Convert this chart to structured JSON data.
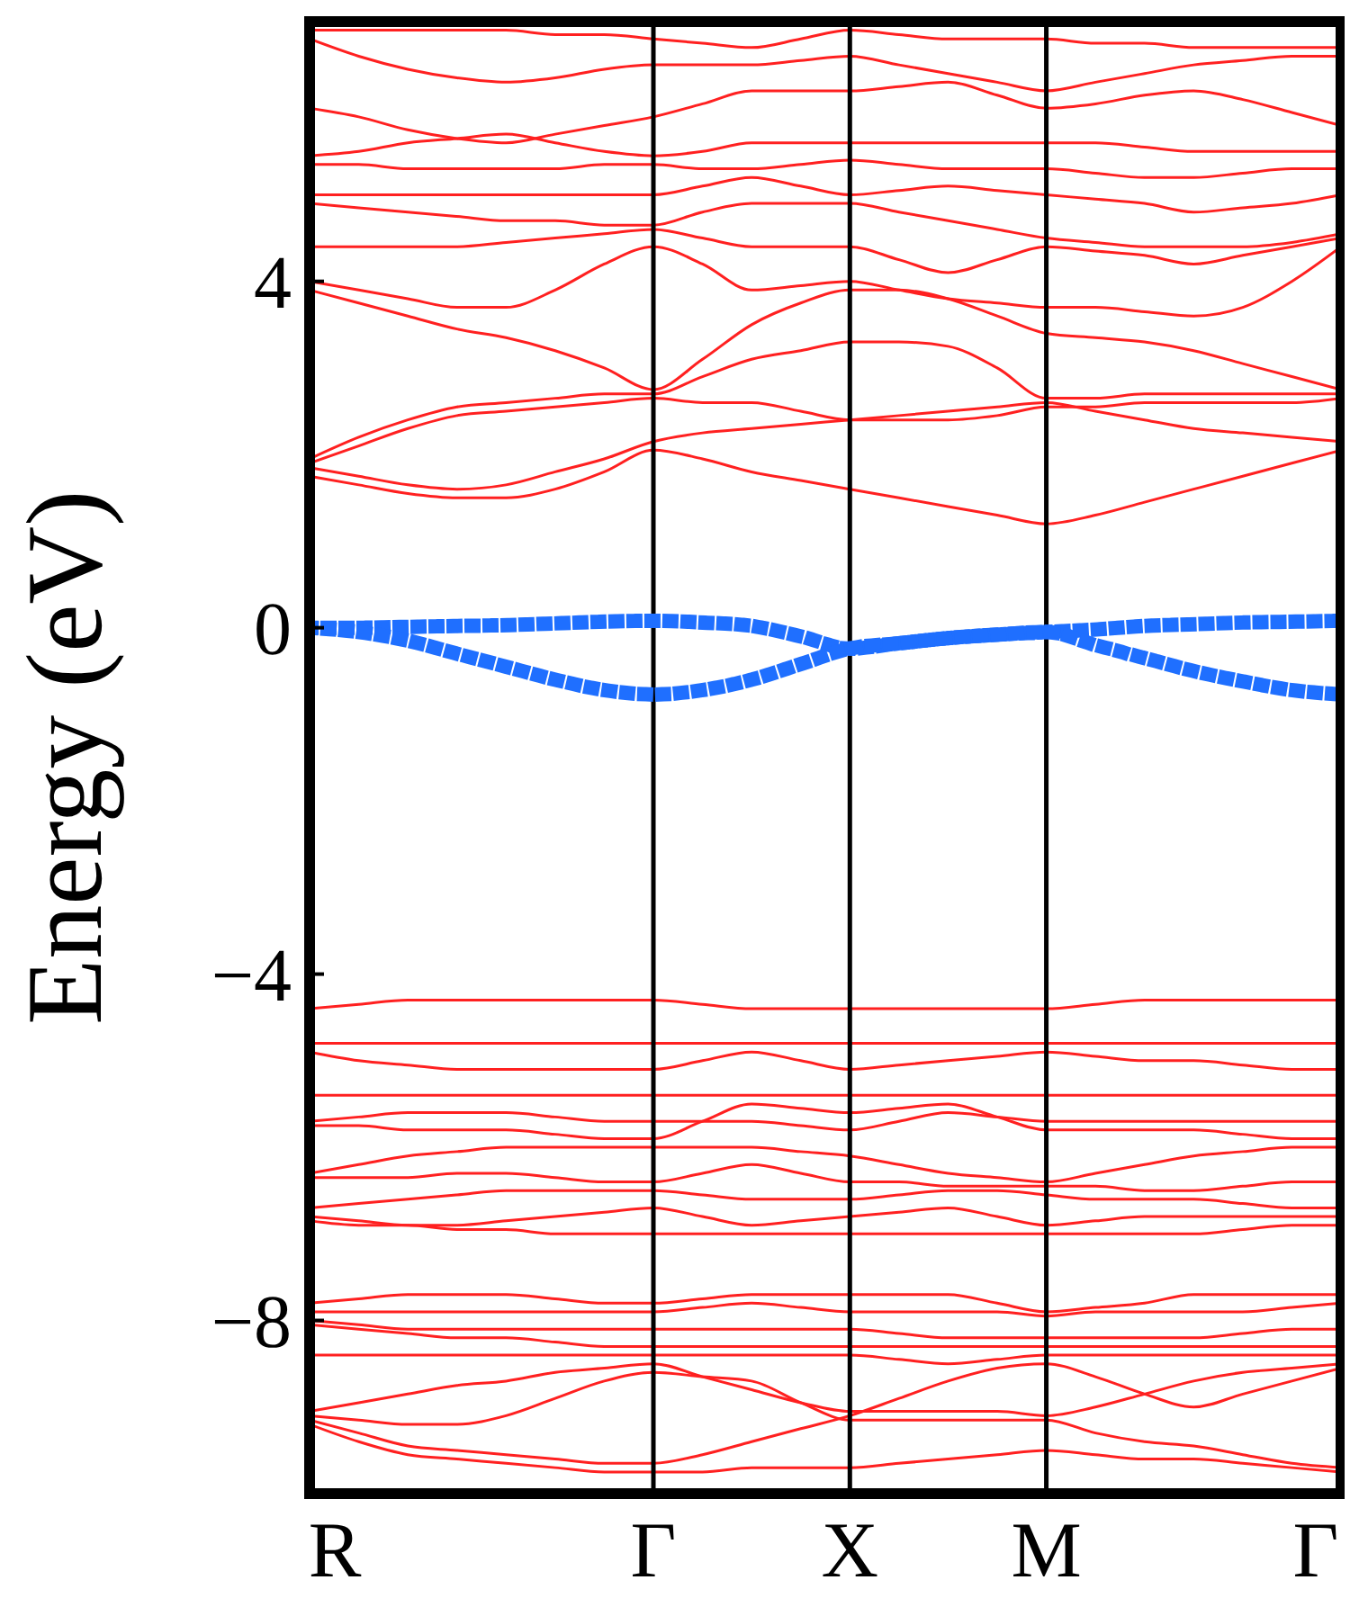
{
  "chart_data": {
    "type": "line",
    "ylabel": "Energy (eV)",
    "categories": [
      "R",
      null,
      null,
      null,
      null,
      null,
      null,
      "Γ",
      null,
      null,
      null,
      "X",
      null,
      null,
      null,
      "M",
      null,
      null,
      null,
      null,
      null,
      "Γ"
    ],
    "ylim": [
      -10,
      7
    ],
    "yticks": [
      {
        "value": -8,
        "label": "−8"
      },
      {
        "value": -4,
        "label": "−4"
      },
      0,
      4
    ],
    "grid": "x",
    "line_style": "solid",
    "series": [
      {
        "color": "#ff2020",
        "values": [
          1.75,
          1.65,
          1.55,
          1.5,
          1.5,
          1.6,
          1.8,
          2.05,
          1.95,
          1.8,
          1.7,
          1.6,
          1.5,
          1.4,
          1.3,
          1.2,
          1.3,
          1.45,
          1.6,
          1.75,
          1.9,
          2.05
        ]
      },
      {
        "color": "#ff2020",
        "values": [
          1.85,
          1.75,
          1.65,
          1.6,
          1.65,
          1.8,
          1.95,
          2.15,
          2.25,
          2.3,
          2.35,
          2.4,
          2.45,
          2.5,
          2.55,
          2.6,
          2.5,
          2.4,
          2.3,
          2.25,
          2.2,
          2.15
        ]
      },
      {
        "color": "#ff2020",
        "values": [
          1.9,
          2.1,
          2.3,
          2.45,
          2.5,
          2.55,
          2.6,
          2.65,
          2.6,
          2.6,
          2.5,
          2.4,
          2.4,
          2.4,
          2.45,
          2.55,
          2.55,
          2.6,
          2.6,
          2.6,
          2.6,
          2.65
        ]
      },
      {
        "color": "#ff2020",
        "values": [
          1.95,
          2.2,
          2.4,
          2.55,
          2.6,
          2.65,
          2.7,
          2.7,
          2.9,
          3.1,
          3.2,
          3.3,
          3.3,
          3.25,
          3.0,
          2.65,
          2.65,
          2.7,
          2.7,
          2.7,
          2.7,
          2.7
        ]
      },
      {
        "color": "#ff2020",
        "values": [
          3.9,
          3.75,
          3.6,
          3.45,
          3.35,
          3.2,
          3.0,
          2.75,
          3.1,
          3.5,
          3.75,
          3.9,
          3.9,
          3.8,
          3.6,
          3.4,
          3.35,
          3.3,
          3.2,
          3.05,
          2.9,
          2.75
        ]
      },
      {
        "color": "#ff2020",
        "values": [
          4.0,
          3.9,
          3.8,
          3.7,
          3.7,
          3.9,
          4.2,
          4.4,
          4.2,
          3.9,
          3.95,
          4.0,
          3.9,
          3.8,
          3.75,
          3.7,
          3.7,
          3.65,
          3.6,
          3.7,
          4.0,
          4.4
        ]
      },
      {
        "color": "#ff2020",
        "values": [
          4.4,
          4.4,
          4.4,
          4.4,
          4.45,
          4.5,
          4.55,
          4.6,
          4.5,
          4.4,
          4.4,
          4.4,
          4.25,
          4.1,
          4.25,
          4.4,
          4.35,
          4.3,
          4.2,
          4.3,
          4.4,
          4.5
        ]
      },
      {
        "color": "#ff2020",
        "values": [
          4.9,
          4.85,
          4.8,
          4.75,
          4.7,
          4.7,
          4.65,
          4.65,
          4.8,
          4.9,
          4.9,
          4.9,
          4.8,
          4.7,
          4.6,
          4.5,
          4.45,
          4.4,
          4.4,
          4.4,
          4.45,
          4.55
        ]
      },
      {
        "color": "#ff2020",
        "values": [
          5.0,
          5.0,
          5.0,
          5.0,
          5.0,
          5.0,
          5.0,
          5.0,
          5.1,
          5.2,
          5.1,
          5.0,
          5.05,
          5.1,
          5.05,
          5.0,
          4.95,
          4.9,
          4.8,
          4.85,
          4.9,
          5.0
        ]
      },
      {
        "color": "#ff2020",
        "values": [
          5.35,
          5.35,
          5.3,
          5.3,
          5.3,
          5.3,
          5.35,
          5.35,
          5.3,
          5.3,
          5.35,
          5.4,
          5.35,
          5.3,
          5.3,
          5.3,
          5.25,
          5.2,
          5.2,
          5.25,
          5.3,
          5.3
        ]
      },
      {
        "color": "#ff2020",
        "values": [
          5.45,
          5.5,
          5.6,
          5.65,
          5.7,
          5.6,
          5.5,
          5.45,
          5.5,
          5.6,
          5.6,
          5.6,
          5.6,
          5.6,
          5.6,
          5.6,
          5.6,
          5.55,
          5.5,
          5.5,
          5.5,
          5.5
        ]
      },
      {
        "color": "#ff2020",
        "values": [
          6.0,
          5.9,
          5.75,
          5.65,
          5.6,
          5.7,
          5.8,
          5.9,
          6.05,
          6.2,
          6.2,
          6.2,
          6.25,
          6.3,
          6.15,
          6.0,
          6.05,
          6.15,
          6.2,
          6.1,
          5.95,
          5.8
        ]
      },
      {
        "color": "#ff2020",
        "values": [
          6.8,
          6.6,
          6.45,
          6.35,
          6.3,
          6.35,
          6.45,
          6.5,
          6.5,
          6.5,
          6.55,
          6.6,
          6.5,
          6.4,
          6.3,
          6.2,
          6.3,
          6.4,
          6.5,
          6.55,
          6.6,
          6.6
        ]
      },
      {
        "color": "#ff2020",
        "values": [
          6.9,
          6.9,
          6.9,
          6.9,
          6.9,
          6.85,
          6.85,
          6.8,
          6.75,
          6.7,
          6.8,
          6.9,
          6.85,
          6.8,
          6.8,
          6.8,
          6.75,
          6.75,
          6.7,
          6.7,
          6.7,
          6.7
        ]
      },
      {
        "color": "#1f6fff",
        "line_style": "dotted",
        "values": [
          0,
          0,
          0.01,
          0.02,
          0.03,
          0.05,
          0.07,
          0.08,
          0.06,
          0.02,
          -0.1,
          -0.24,
          -0.18,
          -0.12,
          -0.08,
          -0.05,
          -0.02,
          0.02,
          0.04,
          0.06,
          0.07,
          0.08
        ]
      },
      {
        "color": "#1f6fff",
        "line_style": "dotted",
        "values": [
          0,
          -0.05,
          -0.15,
          -0.3,
          -0.45,
          -0.6,
          -0.72,
          -0.77,
          -0.72,
          -0.6,
          -0.42,
          -0.24,
          -0.18,
          -0.12,
          -0.08,
          -0.05,
          -0.2,
          -0.35,
          -0.5,
          -0.62,
          -0.72,
          -0.77
        ]
      },
      {
        "color": "#ff2020",
        "values": [
          -4.4,
          -4.35,
          -4.3,
          -4.3,
          -4.3,
          -4.3,
          -4.3,
          -4.3,
          -4.35,
          -4.4,
          -4.4,
          -4.4,
          -4.4,
          -4.4,
          -4.4,
          -4.4,
          -4.35,
          -4.3,
          -4.3,
          -4.3,
          -4.3,
          -4.3
        ]
      },
      {
        "color": "#ff2020",
        "values": [
          -4.8,
          -4.8,
          -4.8,
          -4.8,
          -4.8,
          -4.8,
          -4.8,
          -4.8,
          -4.8,
          -4.8,
          -4.8,
          -4.8,
          -4.8,
          -4.8,
          -4.8,
          -4.8,
          -4.8,
          -4.8,
          -4.8,
          -4.8,
          -4.8,
          -4.8
        ]
      },
      {
        "color": "#ff2020",
        "values": [
          -4.9,
          -5.0,
          -5.05,
          -5.1,
          -5.1,
          -5.1,
          -5.1,
          -5.1,
          -5.0,
          -4.9,
          -5.0,
          -5.1,
          -5.05,
          -5.0,
          -4.95,
          -4.9,
          -4.95,
          -5.0,
          -5.0,
          -5.05,
          -5.1,
          -5.1
        ]
      },
      {
        "color": "#ff2020",
        "values": [
          -5.4,
          -5.4,
          -5.4,
          -5.4,
          -5.4,
          -5.4,
          -5.4,
          -5.4,
          -5.4,
          -5.4,
          -5.4,
          -5.4,
          -5.4,
          -5.4,
          -5.4,
          -5.4,
          -5.4,
          -5.4,
          -5.4,
          -5.4,
          -5.4,
          -5.4
        ]
      },
      {
        "color": "#ff2020",
        "values": [
          -5.7,
          -5.65,
          -5.6,
          -5.6,
          -5.6,
          -5.65,
          -5.7,
          -5.7,
          -5.7,
          -5.7,
          -5.75,
          -5.8,
          -5.7,
          -5.6,
          -5.65,
          -5.7,
          -5.7,
          -5.7,
          -5.7,
          -5.7,
          -5.7,
          -5.7
        ]
      },
      {
        "color": "#ff2020",
        "values": [
          -5.75,
          -5.75,
          -5.8,
          -5.8,
          -5.8,
          -5.85,
          -5.9,
          -5.9,
          -5.7,
          -5.5,
          -5.55,
          -5.6,
          -5.55,
          -5.5,
          -5.65,
          -5.8,
          -5.8,
          -5.8,
          -5.8,
          -5.85,
          -5.9,
          -5.9
        ]
      },
      {
        "color": "#ff2020",
        "values": [
          -6.3,
          -6.2,
          -6.1,
          -6.05,
          -6.0,
          -6.0,
          -6.0,
          -6.0,
          -6.0,
          -6.0,
          -6.05,
          -6.1,
          -6.2,
          -6.3,
          -6.35,
          -6.4,
          -6.3,
          -6.2,
          -6.1,
          -6.05,
          -6.0,
          -6.0
        ]
      },
      {
        "color": "#ff2020",
        "values": [
          -6.35,
          -6.35,
          -6.35,
          -6.3,
          -6.3,
          -6.35,
          -6.4,
          -6.4,
          -6.3,
          -6.2,
          -6.3,
          -6.4,
          -6.4,
          -6.45,
          -6.45,
          -6.45,
          -6.45,
          -6.5,
          -6.5,
          -6.45,
          -6.4,
          -6.4
        ]
      },
      {
        "color": "#ff2020",
        "values": [
          -6.7,
          -6.65,
          -6.6,
          -6.55,
          -6.5,
          -6.5,
          -6.5,
          -6.5,
          -6.55,
          -6.6,
          -6.6,
          -6.6,
          -6.55,
          -6.5,
          -6.5,
          -6.55,
          -6.6,
          -6.6,
          -6.6,
          -6.65,
          -6.7,
          -6.7
        ]
      },
      {
        "color": "#ff2020",
        "values": [
          -6.8,
          -6.85,
          -6.9,
          -6.9,
          -6.85,
          -6.8,
          -6.75,
          -6.7,
          -6.8,
          -6.9,
          -6.85,
          -6.8,
          -6.75,
          -6.7,
          -6.8,
          -6.9,
          -6.85,
          -6.8,
          -6.8,
          -6.8,
          -6.8,
          -6.8
        ]
      },
      {
        "color": "#ff2020",
        "values": [
          -6.85,
          -6.9,
          -6.9,
          -6.95,
          -6.95,
          -7.0,
          -7.0,
          -7.0,
          -7.0,
          -7.0,
          -7.0,
          -7.0,
          -7.0,
          -7.0,
          -7.0,
          -7.0,
          -7.0,
          -7.0,
          -7.0,
          -6.95,
          -6.9,
          -6.9
        ]
      },
      {
        "color": "#ff2020",
        "values": [
          -7.8,
          -7.75,
          -7.7,
          -7.7,
          -7.7,
          -7.75,
          -7.8,
          -7.8,
          -7.75,
          -7.7,
          -7.7,
          -7.7,
          -7.7,
          -7.7,
          -7.8,
          -7.9,
          -7.85,
          -7.8,
          -7.7,
          -7.7,
          -7.7,
          -7.7
        ]
      },
      {
        "color": "#ff2020",
        "values": [
          -7.9,
          -7.9,
          -7.9,
          -7.9,
          -7.9,
          -7.9,
          -7.9,
          -7.9,
          -7.85,
          -7.8,
          -7.85,
          -7.9,
          -7.9,
          -7.9,
          -7.9,
          -7.95,
          -7.9,
          -7.9,
          -7.9,
          -7.9,
          -7.85,
          -7.8
        ]
      },
      {
        "color": "#ff2020",
        "values": [
          -8.0,
          -8.05,
          -8.1,
          -8.1,
          -8.1,
          -8.1,
          -8.1,
          -8.1,
          -8.1,
          -8.1,
          -8.1,
          -8.1,
          -8.15,
          -8.2,
          -8.2,
          -8.2,
          -8.2,
          -8.2,
          -8.2,
          -8.15,
          -8.1,
          -8.1
        ]
      },
      {
        "color": "#ff2020",
        "values": [
          -8.05,
          -8.1,
          -8.15,
          -8.2,
          -8.2,
          -8.25,
          -8.3,
          -8.3,
          -8.3,
          -8.3,
          -8.3,
          -8.3,
          -8.3,
          -8.3,
          -8.3,
          -8.3,
          -8.3,
          -8.3,
          -8.3,
          -8.3,
          -8.3,
          -8.3
        ]
      },
      {
        "color": "#ff2020",
        "values": [
          -8.4,
          -8.4,
          -8.4,
          -8.4,
          -8.4,
          -8.4,
          -8.4,
          -8.4,
          -8.4,
          -8.4,
          -8.4,
          -8.4,
          -8.45,
          -8.5,
          -8.45,
          -8.4,
          -8.4,
          -8.4,
          -8.4,
          -8.4,
          -8.4,
          -8.4
        ]
      },
      {
        "color": "#ff2020",
        "values": [
          -9.05,
          -8.95,
          -8.85,
          -8.75,
          -8.7,
          -8.6,
          -8.55,
          -8.5,
          -8.65,
          -8.8,
          -8.95,
          -9.05,
          -9.05,
          -9.05,
          -9.05,
          -9.1,
          -9.0,
          -8.85,
          -8.7,
          -8.6,
          -8.55,
          -8.5
        ]
      },
      {
        "color": "#ff2020",
        "values": [
          -9.1,
          -9.15,
          -9.2,
          -9.2,
          -9.1,
          -8.9,
          -8.7,
          -8.6,
          -8.65,
          -8.7,
          -8.95,
          -9.15,
          -9.15,
          -9.15,
          -9.15,
          -9.15,
          -9.3,
          -9.4,
          -9.45,
          -9.55,
          -9.65,
          -9.7
        ]
      },
      {
        "color": "#ff2020",
        "values": [
          -9.15,
          -9.3,
          -9.45,
          -9.5,
          -9.55,
          -9.6,
          -9.65,
          -9.65,
          -9.55,
          -9.4,
          -9.25,
          -9.1,
          -8.9,
          -8.7,
          -8.55,
          -8.5,
          -8.65,
          -8.85,
          -9.0,
          -8.85,
          -8.7,
          -8.55
        ]
      },
      {
        "color": "#ff2020",
        "values": [
          -9.2,
          -9.4,
          -9.55,
          -9.6,
          -9.65,
          -9.7,
          -9.75,
          -9.75,
          -9.75,
          -9.7,
          -9.7,
          -9.7,
          -9.65,
          -9.6,
          -9.55,
          -9.5,
          -9.55,
          -9.6,
          -9.6,
          -9.65,
          -9.7,
          -9.75
        ]
      }
    ]
  }
}
